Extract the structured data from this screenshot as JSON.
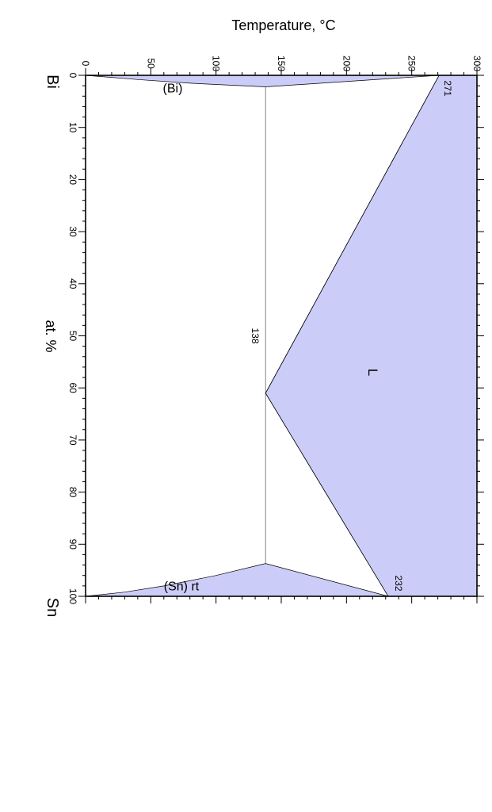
{
  "chart_data": {
    "type": "area",
    "title": "",
    "xlabel": "at. %",
    "ylabel": "Temperature, °C",
    "x_left_element": "Bi",
    "x_right_element": "Sn",
    "xlim": [
      0,
      100
    ],
    "ylim": [
      0,
      300
    ],
    "x_ticks": [
      "0",
      "10",
      "20",
      "30",
      "40",
      "50",
      "60",
      "70",
      "80",
      "90",
      "100"
    ],
    "y_ticks": [
      "0",
      "50",
      "100",
      "150",
      "200",
      "250",
      "300"
    ],
    "grid": false,
    "orientation": "rotated 90° clockwise",
    "fill_color": "#ccccf8",
    "regions": [
      {
        "name": "L",
        "label": "L",
        "boundary": [
          [
            0,
            271
          ],
          [
            61,
            138
          ],
          [
            100,
            232
          ],
          [
            100,
            300
          ],
          [
            0,
            300
          ]
        ]
      },
      {
        "name": "(Bi)",
        "label": "(Bi)",
        "boundary": [
          [
            0,
            0
          ],
          [
            0,
            271
          ],
          [
            2.2,
            138
          ],
          [
            1.5,
            80
          ],
          [
            0.8,
            40
          ],
          [
            0,
            0
          ]
        ]
      },
      {
        "name": "(Sn) rt",
        "label": "(Sn) rt",
        "boundary": [
          [
            100,
            0
          ],
          [
            100,
            232
          ],
          [
            93.7,
            138
          ],
          [
            96,
            100
          ],
          [
            98,
            60
          ],
          [
            99.2,
            30
          ],
          [
            100,
            0
          ]
        ]
      }
    ],
    "lines": [
      {
        "name": "eutectic",
        "x": [
          2.2,
          93.7
        ],
        "y": [
          138,
          138
        ]
      },
      {
        "name": "liquidus-left",
        "x": [
          0,
          61
        ],
        "y": [
          271,
          138
        ]
      },
      {
        "name": "liquidus-right",
        "x": [
          61,
          100
        ],
        "y": [
          138,
          232
        ]
      }
    ],
    "annotations": [
      {
        "text": "271",
        "x": 0,
        "y": 271
      },
      {
        "text": "232",
        "x": 100,
        "y": 232
      },
      {
        "text": "138",
        "x": 50,
        "y": 138
      }
    ]
  }
}
